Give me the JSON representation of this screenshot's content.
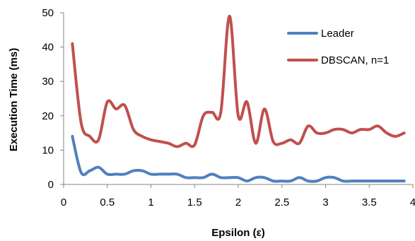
{
  "chart_data": {
    "type": "line",
    "title": "",
    "xlabel": "Epsilon (ε)",
    "ylabel": "Execution Time (ms)",
    "xlim": [
      0,
      4
    ],
    "ylim": [
      0,
      50
    ],
    "x_ticks": [
      "0",
      "0.5",
      "1",
      "1.5",
      "2",
      "2.5",
      "3",
      "3.5",
      "4"
    ],
    "y_ticks": [
      "0",
      "10",
      "20",
      "30",
      "40",
      "50"
    ],
    "grid": false,
    "legend_position": "top-right",
    "x": [
      0.1,
      0.2,
      0.3,
      0.4,
      0.5,
      0.6,
      0.7,
      0.8,
      0.9,
      1.0,
      1.1,
      1.2,
      1.3,
      1.4,
      1.5,
      1.6,
      1.7,
      1.8,
      1.9,
      2.0,
      2.1,
      2.2,
      2.3,
      2.4,
      2.5,
      2.6,
      2.7,
      2.8,
      2.9,
      3.0,
      3.1,
      3.2,
      3.3,
      3.4,
      3.5,
      3.6,
      3.7,
      3.8,
      3.9
    ],
    "series": [
      {
        "name": "Leader",
        "color": "#4f81bd",
        "values": [
          14,
          3.5,
          4,
          5,
          3,
          3,
          3,
          4,
          4,
          3,
          3,
          3,
          3,
          2,
          2,
          2,
          3,
          2,
          2,
          2,
          1,
          2,
          2,
          1,
          1,
          1,
          2,
          1,
          1,
          2,
          2,
          1,
          1,
          1,
          1,
          1,
          1,
          1,
          1
        ]
      },
      {
        "name": "DBSCAN, n=1",
        "color": "#c0504d",
        "values": [
          41,
          18,
          14,
          13,
          24,
          22,
          23,
          16,
          14,
          13,
          12.5,
          12,
          11,
          12,
          11.5,
          20,
          21,
          21,
          49,
          20,
          24,
          12,
          22,
          12.5,
          12,
          13,
          12,
          17,
          15,
          15,
          16,
          16,
          15,
          16,
          16,
          17,
          15,
          14,
          15
        ]
      }
    ]
  }
}
